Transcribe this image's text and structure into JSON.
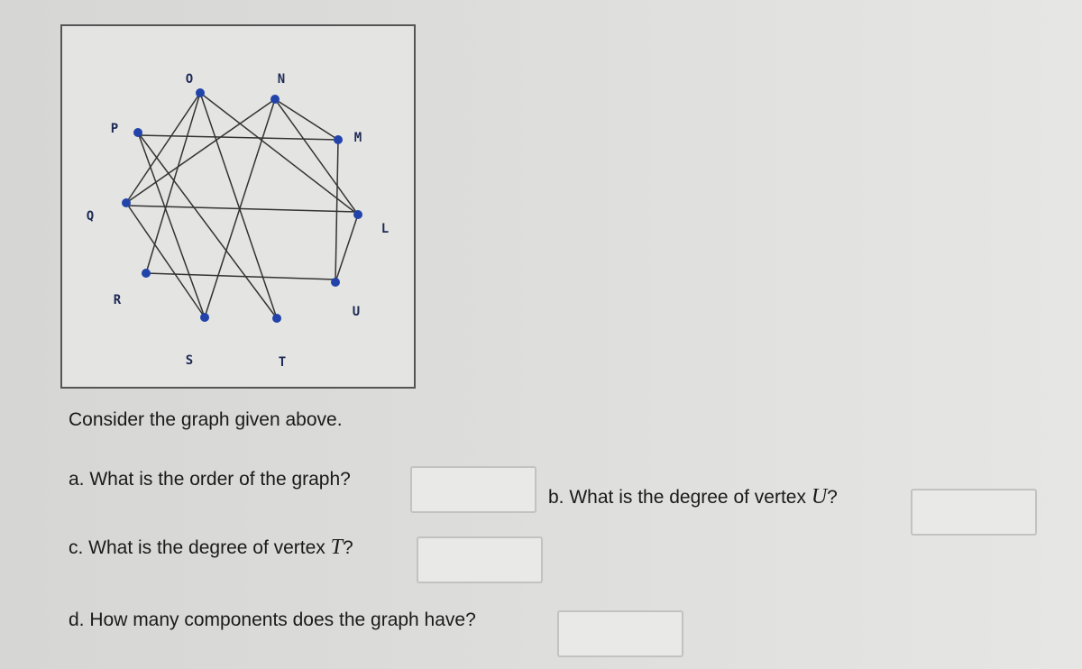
{
  "graph": {
    "vertices": [
      {
        "label": "O"
      },
      {
        "label": "N"
      },
      {
        "label": "P"
      },
      {
        "label": "M"
      },
      {
        "label": "Q"
      },
      {
        "label": "L"
      },
      {
        "label": "R"
      },
      {
        "label": "U"
      },
      {
        "label": "S"
      },
      {
        "label": "T"
      }
    ]
  },
  "intro": "Consider the graph given above.",
  "questions": [
    {
      "text": "a. What is the order of the graph?"
    },
    {
      "text": "b. What is the degree of vertex",
      "variable": "U",
      "suffix": "?"
    },
    {
      "text": "c. What is the degree of vertex",
      "variable": "T",
      "suffix": "?"
    },
    {
      "text": "d. How many components does the graph have?"
    }
  ]
}
